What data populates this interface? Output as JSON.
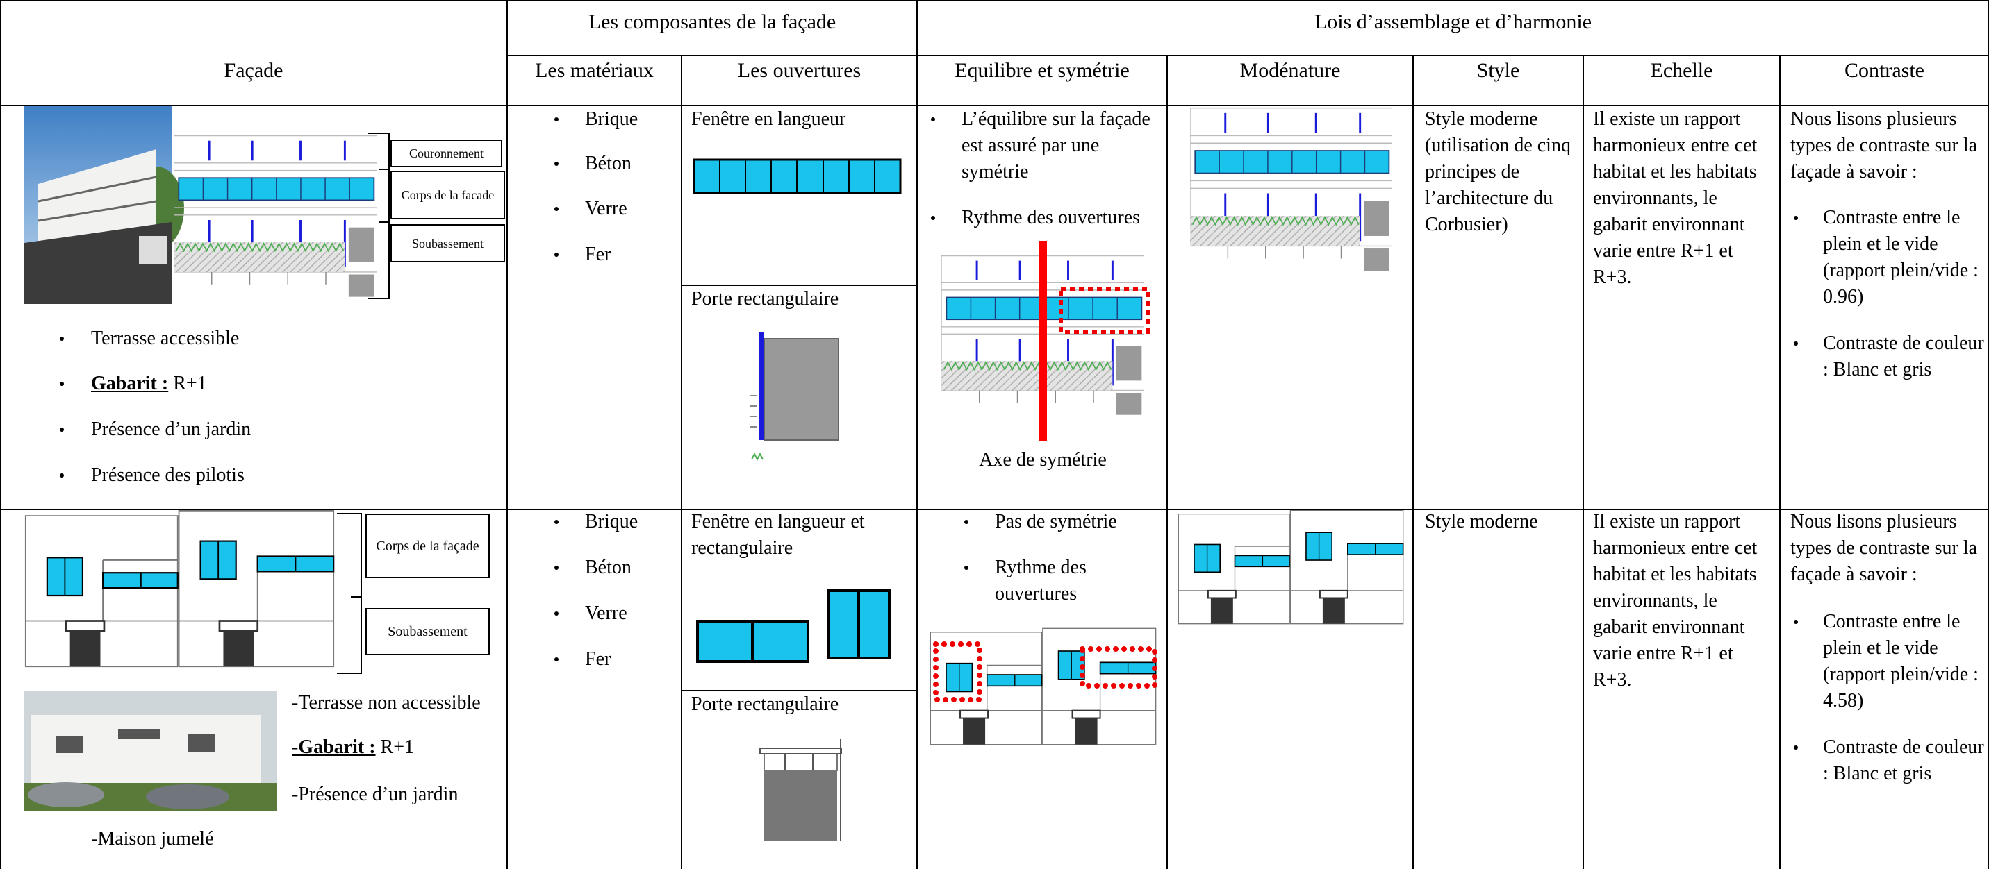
{
  "table": {
    "group_headers": [
      "Les composantes de la façade",
      "Lois d’assemblage et d’harmonie"
    ],
    "columns": [
      "Façade",
      "Les matériaux",
      "Les ouvertures",
      "Equilibre et symétrie",
      "Modénature",
      "Style",
      "Echelle",
      "Contraste"
    ],
    "rows": [
      {
        "facade": {
          "diagram_labels": [
            "Couronnement",
            "Corps de la facade",
            "Soubassement"
          ],
          "items": [
            "Terrasse accessible",
            {
              "label": "Gabarit :",
              "value": "R+1"
            },
            "Présence d’un jardin",
            "Présence des pilotis"
          ]
        },
        "materials": [
          "Brique",
          "Béton",
          "Verre",
          "Fer"
        ],
        "openings": [
          "Fenêtre en langueur",
          "Porte rectangulaire"
        ],
        "balance": {
          "items": [
            "L’équilibre sur la façade est assuré par une symétrie",
            "Rythme des ouvertures"
          ],
          "caption": "Axe de symétrie"
        },
        "style": "Style moderne (utilisation de cinq principes de l’architecture du Corbusier)",
        "scale": "Il existe un rapport harmonieux entre cet habitat et les habitats environnants, le gabarit environnant varie entre R+1 et R+3.",
        "contrast": {
          "intro": "Nous lisons plusieurs types de contraste sur la façade à savoir :",
          "items": [
            "Contraste entre le plein et le vide (rapport plein/vide : 0.96)",
            "Contraste de couleur : Blanc et gris"
          ]
        }
      },
      {
        "facade": {
          "diagram_labels": [
            "Corps de la façade",
            "Soubassement"
          ],
          "items": [
            "-Terrasse non accessible",
            {
              "label": "-Gabarit :",
              "value": "R+1"
            },
            "-Présence d’un jardin",
            "-Maison jumelé"
          ]
        },
        "materials": [
          "Brique",
          "Béton",
          "Verre",
          "Fer"
        ],
        "openings": [
          "Fenêtre en langueur et rectangulaire",
          "Porte rectangulaire"
        ],
        "balance": {
          "items": [
            "Pas de symétrie",
            "Rythme des ouvertures"
          ]
        },
        "style": "Style moderne",
        "scale": "Il existe un rapport harmonieux entre cet habitat et les habitats environnants, le gabarit environnant varie entre R+1 et R+3.",
        "contrast": {
          "intro": "Nous lisons plusieurs types de contraste sur la façade à savoir :",
          "items": [
            "Contraste entre le plein et le vide (rapport plein/vide : 4.58)",
            "Contraste de couleur : Blanc et gris"
          ]
        }
      }
    ]
  }
}
